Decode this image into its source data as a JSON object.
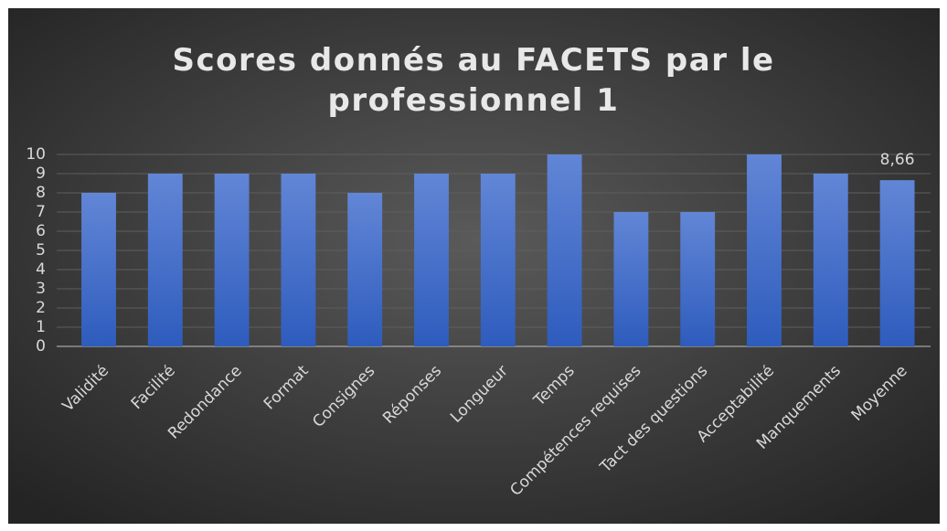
{
  "chart_data": {
    "type": "bar",
    "title": "Scores donnés au FACETS par le professionnel 1",
    "categories": [
      "Validité",
      "Facilité",
      "Redondance",
      "Format",
      "Consignes",
      "Réponses",
      "Longueur",
      "Temps",
      "Compétences requises",
      "Tact des questions",
      "Acceptabilité",
      "Manquements",
      "Moyenne"
    ],
    "values": [
      8,
      9,
      9,
      9,
      8,
      9,
      9,
      10,
      7,
      7,
      10,
      9,
      8.66
    ],
    "value_labels": [
      null,
      null,
      null,
      null,
      null,
      null,
      null,
      null,
      null,
      null,
      null,
      null,
      "8,66"
    ],
    "color": "#4472c4",
    "ylim": [
      0,
      10
    ],
    "yticks": [
      0,
      1,
      2,
      3,
      4,
      5,
      6,
      7,
      8,
      9,
      10
    ],
    "grid": true
  }
}
